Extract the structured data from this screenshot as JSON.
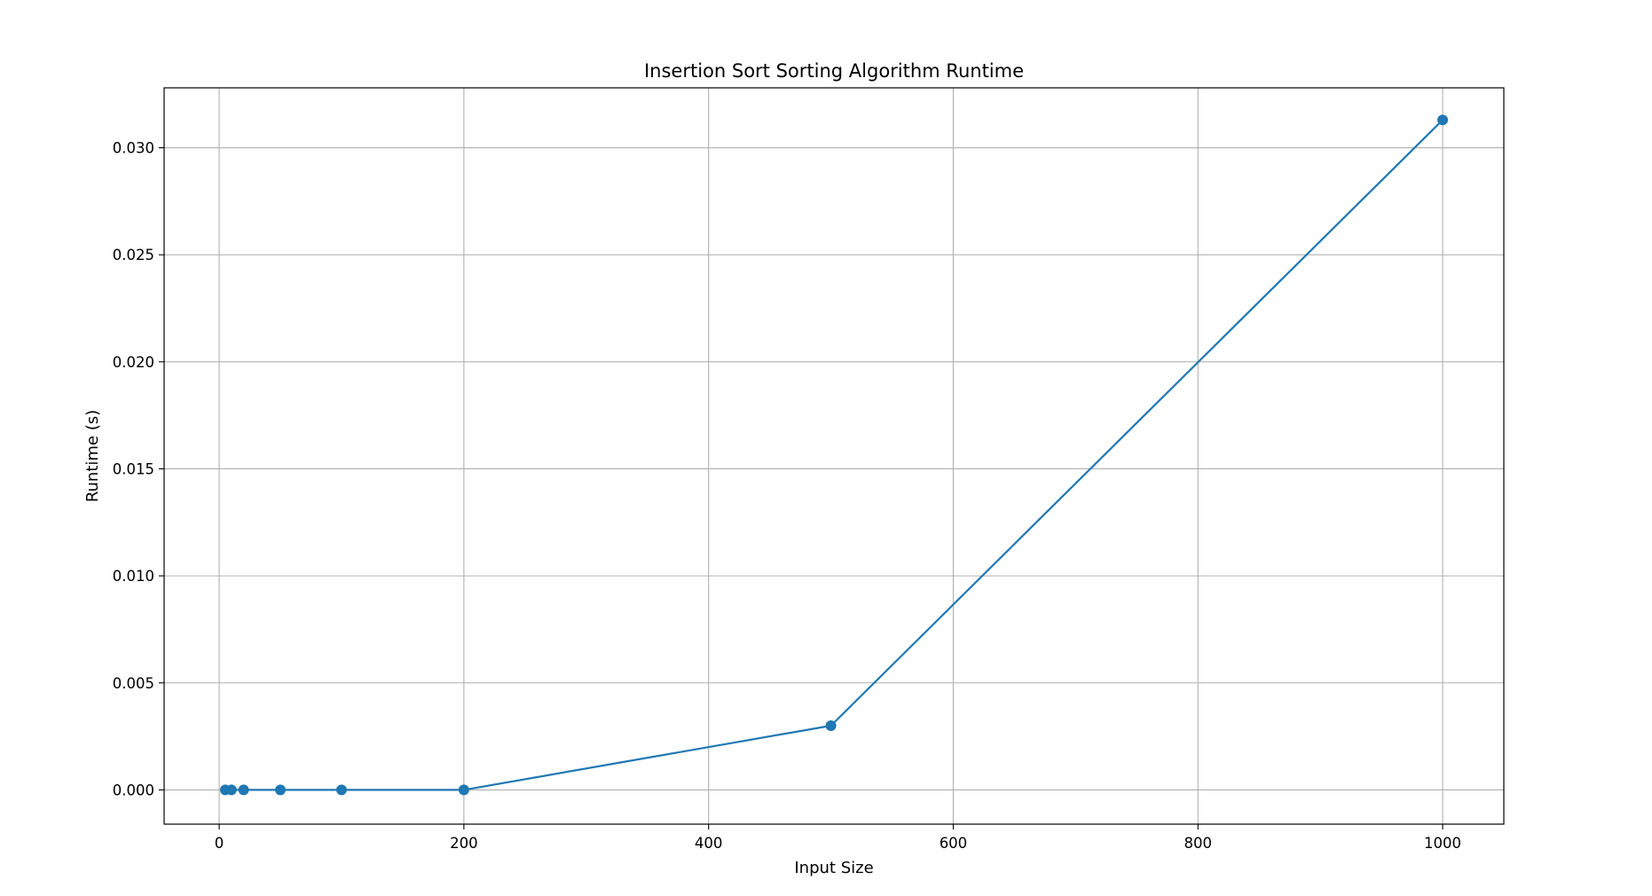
{
  "chart_data": {
    "type": "line",
    "title": "Insertion Sort Sorting Algorithm Runtime",
    "xlabel": "Input Size",
    "ylabel": "Runtime (s)",
    "xlim": [
      -45,
      1050
    ],
    "ylim": [
      -0.0016,
      0.0328
    ],
    "x_ticks": [
      0,
      200,
      400,
      600,
      800,
      1000
    ],
    "x_tick_labels": [
      "0",
      "200",
      "400",
      "600",
      "800",
      "1000"
    ],
    "y_ticks": [
      0,
      0.005,
      0.01,
      0.015,
      0.02,
      0.025,
      0.03
    ],
    "y_tick_labels": [
      "0.000",
      "0.005",
      "0.010",
      "0.015",
      "0.020",
      "0.025",
      "0.030"
    ],
    "grid": true,
    "series": [
      {
        "color": "#1f77b4",
        "marker": "circle",
        "x": [
          5,
          10,
          20,
          50,
          100,
          200,
          500,
          1000
        ],
        "y": [
          0.0,
          0.0,
          0.0,
          0.0,
          0.0,
          0.0,
          0.003,
          0.0313
        ]
      }
    ]
  }
}
